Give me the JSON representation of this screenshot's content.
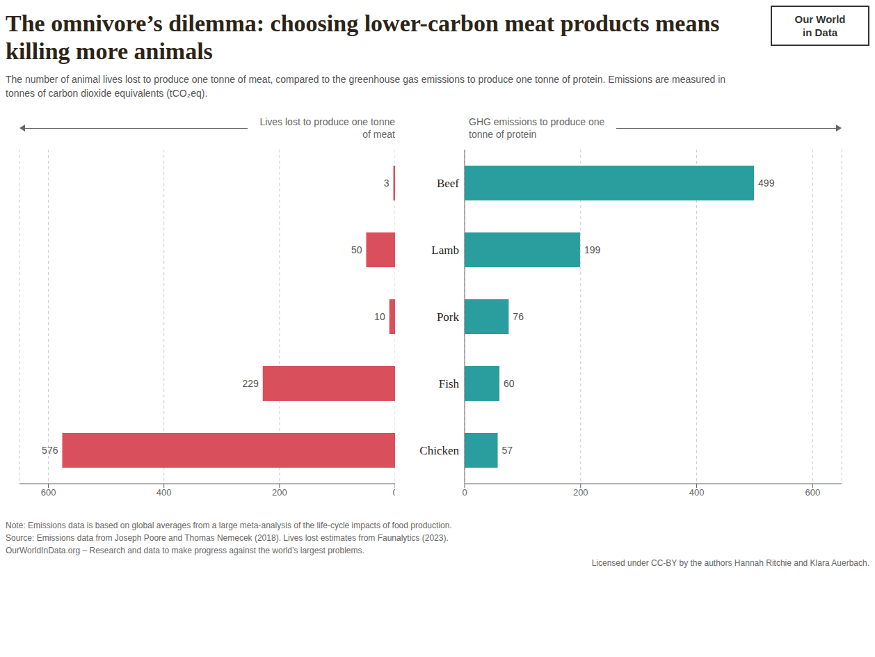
{
  "chart_data": [
    {
      "type": "bar",
      "orientation": "horizontal",
      "title": "The omnivore’s dilemma: choosing lower-carbon meat products means killing more animals",
      "subtitle": "The number of animal lives lost to produce one tonne of meat, compared to the greenhouse gas emissions to produce one tonne of protein. Emissions are measured in tonnes of carbon dioxide equivalents (tCO₂eq).",
      "annotations": [
        "Note: Emissions data is based on global averages from a large meta-analysis of the life-cycle impacts of food production.",
        "Source: Emissions data from Joseph Poore and Thomas Nemecek (2018). Lives lost estimates from Faunalytics (2023).",
        "OurWorldInData.org – Research and data to make progress against the world’s largest problems.",
        "Licensed under CC-BY by the authors Hannah Ritchie and Klara Auerbach.",
        "Our World",
        "in Data"
      ],
      "xlabel": "Lives lost to produce one tonne of meat",
      "categories": [
        "Beef",
        "Lamb",
        "Pork",
        "Fish",
        "Chicken"
      ],
      "values": [
        3,
        50,
        10,
        229,
        576
      ],
      "color": "#D94F5C",
      "xlim": [
        650,
        0
      ],
      "xticks": [
        0,
        200,
        400,
        600
      ],
      "grid": true,
      "data_labels": true,
      "tick_labels": "x"
    },
    {
      "type": "bar",
      "orientation": "horizontal",
      "xlabel": "GHG emissions to produce one tonne of protein",
      "categories": [
        "Beef",
        "Lamb",
        "Pork",
        "Fish",
        "Chicken"
      ],
      "values": [
        499,
        199,
        76,
        60,
        57
      ],
      "color": "#2A9D9E",
      "xlim": [
        0,
        650
      ],
      "xticks": [
        0,
        200,
        400,
        600
      ],
      "grid": true,
      "data_labels": true
    }
  ]
}
